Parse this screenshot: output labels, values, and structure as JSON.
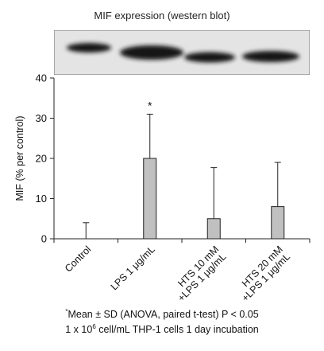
{
  "blot": {
    "title": "MIF expression (western blot)"
  },
  "chart_data": {
    "type": "bar",
    "ylabel": "MIF (% per control)",
    "xlabel": "",
    "ylim": [
      0,
      40
    ],
    "yticks": [
      0,
      10,
      20,
      30,
      40
    ],
    "categories": [
      [
        "Control"
      ],
      [
        "LPS 1 μg/mL"
      ],
      [
        "HTS 10 mM",
        "+LPS 1 μg/mL"
      ],
      [
        "HTS 20 mM",
        "+LPS 1 μg/mL"
      ]
    ],
    "values": [
      0,
      20,
      5,
      8
    ],
    "error_plus": [
      4,
      11,
      12.7,
      11
    ],
    "annotations": [
      "",
      "*",
      "",
      ""
    ],
    "bar_color": "#c0c0c0"
  },
  "footnotes": {
    "line1_marker": "*",
    "line1": "Mean ± SD (ANOVA, paired t-test) P < 0.05",
    "line2_a": "1 x 10",
    "line2_sup": "6",
    "line2_b": " cell/mL THP-1 cells 1 day incubation"
  }
}
